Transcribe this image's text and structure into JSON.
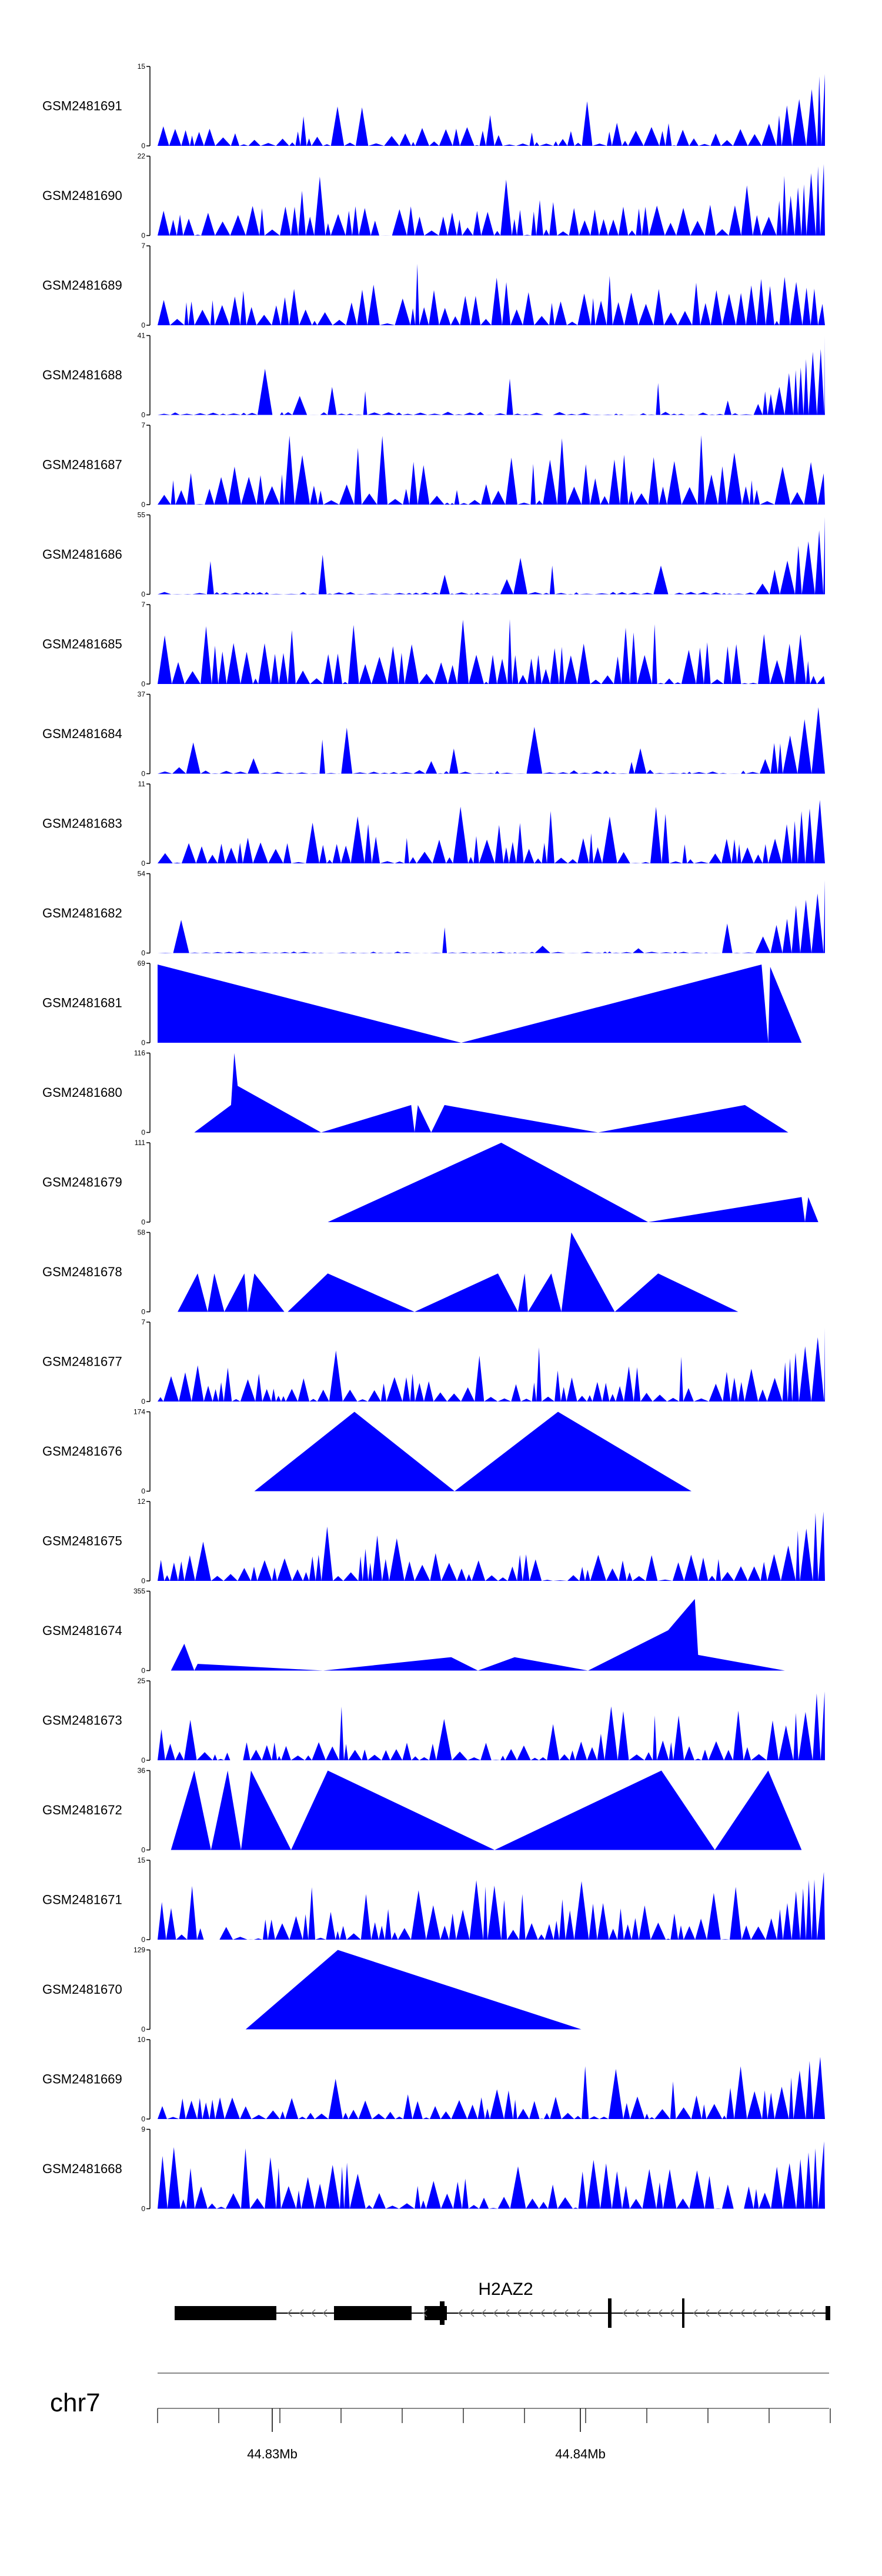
{
  "colors": {
    "track_fill": "#0000ff",
    "axis": "#000000",
    "gene": "#000000",
    "ideogram_line": "#888888"
  },
  "chart_data": {
    "type": "area",
    "chromosome": "chr7",
    "gene": {
      "name": "H2AZ2",
      "strand": "-"
    },
    "axis_ticks": [
      {
        "label": "44.83Mb",
        "pos": 44.83
      },
      {
        "label": "44.84Mb",
        "pos": 44.84
      }
    ],
    "tracks": [
      {
        "name": "GSM2481691",
        "ymax": 15
      },
      {
        "name": "GSM2481690",
        "ymax": 22
      },
      {
        "name": "GSM2481689",
        "ymax": 7
      },
      {
        "name": "GSM2481688",
        "ymax": 41
      },
      {
        "name": "GSM2481687",
        "ymax": 7
      },
      {
        "name": "GSM2481686",
        "ymax": 55
      },
      {
        "name": "GSM2481685",
        "ymax": 7
      },
      {
        "name": "GSM2481684",
        "ymax": 37
      },
      {
        "name": "GSM2481683",
        "ymax": 11
      },
      {
        "name": "GSM2481682",
        "ymax": 54
      },
      {
        "name": "GSM2481681",
        "ymax": 69,
        "points": [
          [
            0.0,
            68
          ],
          [
            0.455,
            0
          ],
          [
            0.905,
            68
          ],
          [
            0.915,
            0
          ],
          [
            0.918,
            66
          ],
          [
            0.965,
            0
          ]
        ]
      },
      {
        "name": "GSM2481680",
        "ymax": 116,
        "points": [
          [
            0.055,
            0
          ],
          [
            0.11,
            40
          ],
          [
            0.115,
            116
          ],
          [
            0.12,
            68
          ],
          [
            0.245,
            0
          ],
          [
            0.38,
            40
          ],
          [
            0.385,
            0
          ],
          [
            0.39,
            40
          ],
          [
            0.41,
            0
          ],
          [
            0.43,
            40
          ],
          [
            0.66,
            0
          ],
          [
            0.88,
            40
          ],
          [
            0.945,
            0
          ]
        ]
      },
      {
        "name": "GSM2481679",
        "ymax": 111,
        "points": [
          [
            0.255,
            0
          ],
          [
            0.515,
            111
          ],
          [
            0.735,
            0
          ],
          [
            0.965,
            35
          ],
          [
            0.97,
            0
          ],
          [
            0.975,
            35
          ],
          [
            0.99,
            0
          ]
        ]
      },
      {
        "name": "GSM2481678",
        "ymax": 58,
        "points": [
          [
            0.03,
            0
          ],
          [
            0.06,
            28
          ],
          [
            0.075,
            0
          ],
          [
            0.085,
            28
          ],
          [
            0.1,
            0
          ],
          [
            0.13,
            28
          ],
          [
            0.135,
            0
          ],
          [
            0.145,
            28
          ],
          [
            0.19,
            0
          ],
          [
            0.195,
            0
          ],
          [
            0.255,
            28
          ],
          [
            0.385,
            0
          ],
          [
            0.51,
            28
          ],
          [
            0.54,
            0
          ],
          [
            0.55,
            28
          ],
          [
            0.555,
            0
          ],
          [
            0.59,
            28
          ],
          [
            0.605,
            0
          ],
          [
            0.62,
            58
          ],
          [
            0.685,
            0
          ],
          [
            0.75,
            28
          ],
          [
            0.87,
            0
          ]
        ]
      },
      {
        "name": "GSM2481677",
        "ymax": 7
      },
      {
        "name": "GSM2481676",
        "ymax": 174,
        "points": [
          [
            0.145,
            0
          ],
          [
            0.295,
            174
          ],
          [
            0.445,
            0
          ],
          [
            0.6,
            174
          ],
          [
            0.8,
            0
          ]
        ]
      },
      {
        "name": "GSM2481675",
        "ymax": 12
      },
      {
        "name": "GSM2481674",
        "ymax": 355,
        "points": [
          [
            0.02,
            0
          ],
          [
            0.04,
            120
          ],
          [
            0.055,
            0
          ],
          [
            0.06,
            30
          ],
          [
            0.248,
            0
          ],
          [
            0.44,
            60
          ],
          [
            0.48,
            0
          ],
          [
            0.535,
            60
          ],
          [
            0.645,
            0
          ],
          [
            0.765,
            180
          ],
          [
            0.805,
            320
          ],
          [
            0.81,
            70
          ],
          [
            0.94,
            0
          ]
        ]
      },
      {
        "name": "GSM2481673",
        "ymax": 25
      },
      {
        "name": "GSM2481672",
        "ymax": 36,
        "points": [
          [
            0.02,
            0
          ],
          [
            0.055,
            36
          ],
          [
            0.08,
            0
          ],
          [
            0.105,
            36
          ],
          [
            0.125,
            0
          ],
          [
            0.14,
            36
          ],
          [
            0.2,
            0
          ],
          [
            0.255,
            36
          ],
          [
            0.505,
            0
          ],
          [
            0.755,
            36
          ],
          [
            0.835,
            0
          ],
          [
            0.915,
            36
          ],
          [
            0.965,
            0
          ]
        ]
      },
      {
        "name": "GSM2481671",
        "ymax": 15
      },
      {
        "name": "GSM2481670",
        "ymax": 129,
        "points": [
          [
            0.132,
            0
          ],
          [
            0.27,
            129
          ],
          [
            0.635,
            0
          ]
        ]
      },
      {
        "name": "GSM2481669",
        "ymax": 10
      },
      {
        "name": "GSM2481668",
        "ymax": 9
      }
    ]
  }
}
